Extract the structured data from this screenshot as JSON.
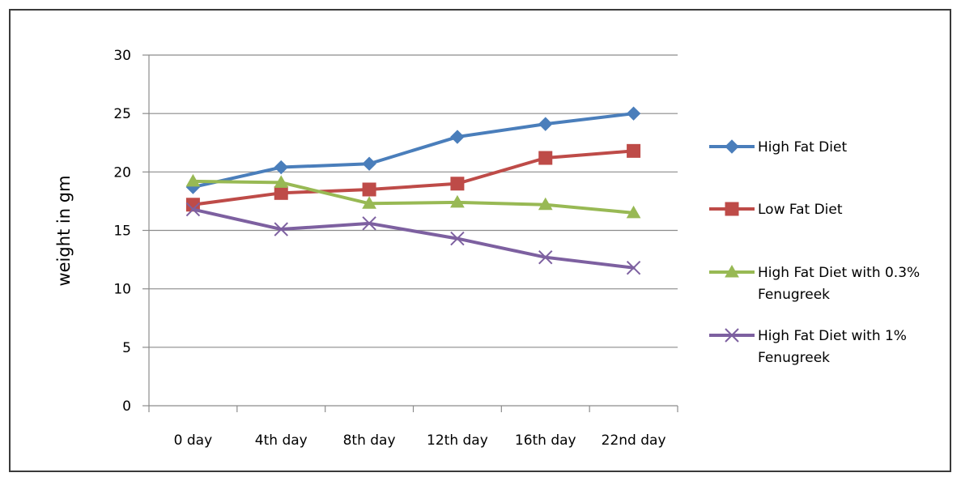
{
  "chart_data": {
    "type": "line",
    "title": "",
    "xlabel": "",
    "ylabel": "weight in gm",
    "ylim": [
      0,
      30
    ],
    "yticks": [
      0,
      5,
      10,
      15,
      20,
      25,
      30
    ],
    "grid": "horizontal",
    "legend_position": "right",
    "categories": [
      "0 day",
      "4th day",
      "8th day",
      "12th day",
      "16th day",
      "22nd day"
    ],
    "series": [
      {
        "name": "High Fat Diet",
        "color": "#4a7ebb",
        "marker": "diamond",
        "values": [
          18.7,
          20.4,
          20.7,
          23.0,
          24.1,
          25.0
        ]
      },
      {
        "name": "Low Fat Diet",
        "color": "#be4b48",
        "marker": "square",
        "values": [
          17.2,
          18.2,
          18.5,
          19.0,
          21.2,
          21.8
        ]
      },
      {
        "name": "High Fat Diet with 0.3% Fenugreek",
        "legend_lines": [
          "High Fat Diet with 0.3%",
          "Fenugreek"
        ],
        "color": "#98b954",
        "marker": "triangle",
        "values": [
          19.2,
          19.1,
          17.3,
          17.4,
          17.2,
          16.5
        ]
      },
      {
        "name": "High Fat Diet with 1% Fenugreek",
        "legend_lines": [
          "High Fat Diet with 1%",
          "Fenugreek"
        ],
        "color": "#7d60a0",
        "marker": "x",
        "values": [
          16.8,
          15.1,
          15.6,
          14.3,
          12.7,
          11.8
        ]
      }
    ]
  }
}
